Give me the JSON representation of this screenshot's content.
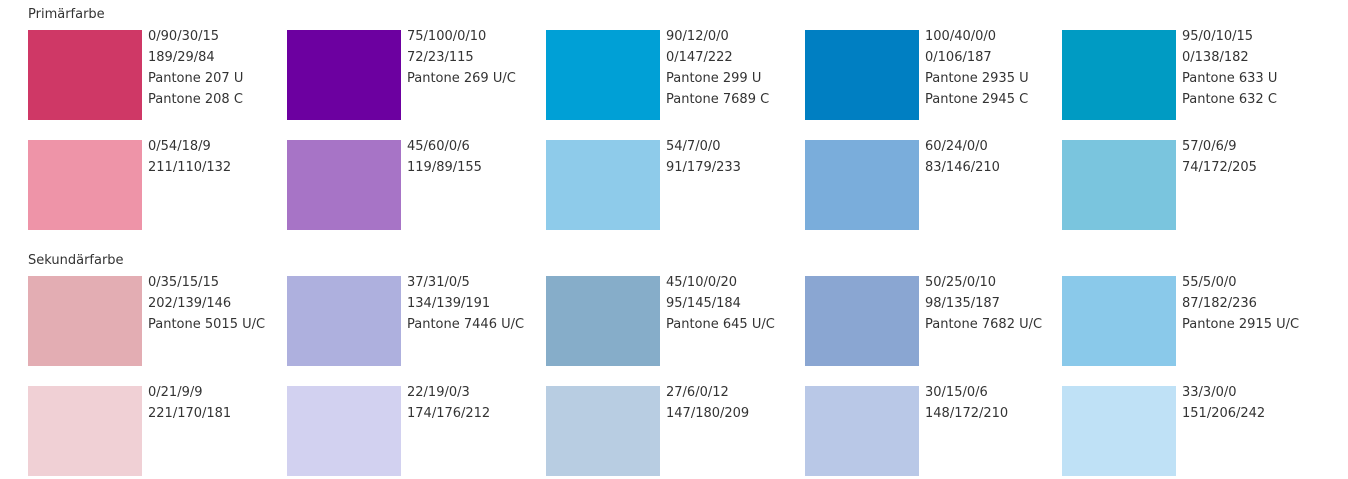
{
  "sections": [
    {
      "title": "Primärfarbe",
      "rows": [
        [
          {
            "color": "#cf3866",
            "lines": [
              "0/90/30/15",
              "189/29/84",
              "Pantone 207 U",
              "Pantone 208 C"
            ]
          },
          {
            "color": "#6c00a0",
            "lines": [
              "75/100/0/10",
              "72/23/115",
              "Pantone 269 U/C"
            ]
          },
          {
            "color": "#00a0d6",
            "lines": [
              "90/12/0/0",
              "0/147/222",
              "Pantone 299 U",
              "Pantone 7689 C"
            ]
          },
          {
            "color": "#007fc2",
            "lines": [
              "100/40/0/0",
              "0/106/187",
              "Pantone 2935 U",
              "Pantone 2945 C"
            ]
          },
          {
            "color": "#009bc3",
            "lines": [
              "95/0/10/15",
              "0/138/182",
              "Pantone 633 U",
              "Pantone 632 C"
            ]
          }
        ],
        [
          {
            "color": "#ee94a8",
            "lines": [
              "0/54/18/9",
              "211/110/132"
            ]
          },
          {
            "color": "#a774c6",
            "lines": [
              "45/60/0/6",
              "119/89/155"
            ]
          },
          {
            "color": "#8ecbea",
            "lines": [
              "54/7/0/0",
              "91/179/233"
            ]
          },
          {
            "color": "#7aaddb",
            "lines": [
              "60/24/0/0",
              "83/146/210"
            ]
          },
          {
            "color": "#7ac5de",
            "lines": [
              "57/0/6/9",
              "74/172/205"
            ]
          }
        ]
      ]
    },
    {
      "title": "Sekundärfarbe",
      "rows": [
        [
          {
            "color": "#e3adb3",
            "lines": [
              "0/35/15/15",
              "202/139/146",
              "Pantone 5015 U/C"
            ]
          },
          {
            "color": "#aeb0de",
            "lines": [
              "37/31/0/5",
              "134/139/191",
              "Pantone 7446 U/C"
            ]
          },
          {
            "color": "#86adc9",
            "lines": [
              "45/10/0/20",
              "95/145/184",
              "Pantone 645 U/C"
            ]
          },
          {
            "color": "#8aa6d2",
            "lines": [
              "50/25/0/10",
              "98/135/187",
              "Pantone 7682 U/C"
            ]
          },
          {
            "color": "#8ac9ea",
            "lines": [
              "55/5/0/0",
              "87/182/236",
              "Pantone 2915 U/C"
            ]
          }
        ],
        [
          {
            "color": "#f0d0d5",
            "lines": [
              "0/21/9/9",
              "221/170/181"
            ]
          },
          {
            "color": "#d2d1f0",
            "lines": [
              "22/19/0/3",
              "174/176/212"
            ]
          },
          {
            "color": "#b8cde2",
            "lines": [
              "27/6/0/12",
              "147/180/209"
            ]
          },
          {
            "color": "#b9c8e7",
            "lines": [
              "30/15/0/6",
              "148/172/210"
            ]
          },
          {
            "color": "#bfe1f6",
            "lines": [
              "33/3/0/0",
              "151/206/242"
            ]
          }
        ]
      ]
    }
  ]
}
